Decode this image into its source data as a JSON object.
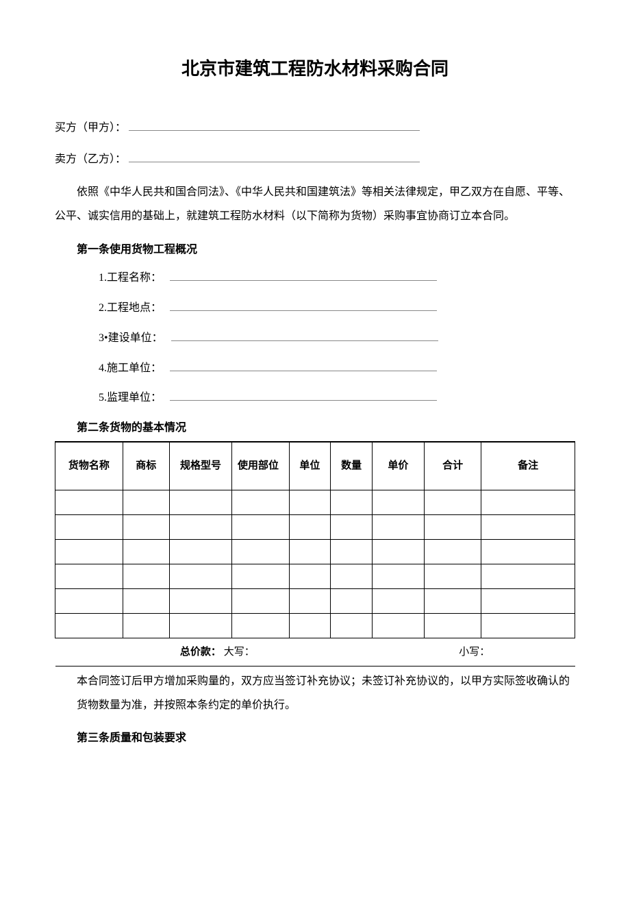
{
  "title": "北京市建筑工程防水材料采购合同",
  "parties": {
    "buyer_label": "买方（甲方）：",
    "seller_label": "卖方（乙方）："
  },
  "intro": "依照《中华人民共和国合同法》、《中华人民共和国建筑法》等相关法律规定，甲乙双方在自愿、平等、公平、诚实信用的基础上，就建筑工程防水材料（以下简称为货物）采购事宜协商订立本合同。",
  "section1": {
    "heading": "第一条使用货物工程概况",
    "fields": {
      "f1": "1.工程名称：",
      "f2": "2.工程地点：",
      "f3": "3•建设单位：",
      "f4": "4.施工单位：",
      "f5": "5.监理单位："
    }
  },
  "section2": {
    "heading": "第二条货物的基本情况",
    "columns": {
      "c1": "货物名称",
      "c2": "商标",
      "c3": "规格型号",
      "c4": "使用部位",
      "c5": "单位",
      "c6": "数量",
      "c7": "单价",
      "c8": "合计",
      "c9": "备注"
    },
    "col_widths": [
      "13%",
      "9%",
      "12%",
      "11%",
      "8%",
      "8%",
      "10%",
      "11%",
      "18%"
    ],
    "empty_rows": 6,
    "total": {
      "label": "总价款：",
      "upper": "大写：",
      "lower": "小写："
    },
    "note": "本合同签订后甲方增加采购量的，双方应当签订补充协议；未签订补充协议的，以甲方实际签收确认的货物数量为准，并按照本条约定的单价执行。"
  },
  "section3": {
    "heading": "第三条质量和包装要求"
  }
}
